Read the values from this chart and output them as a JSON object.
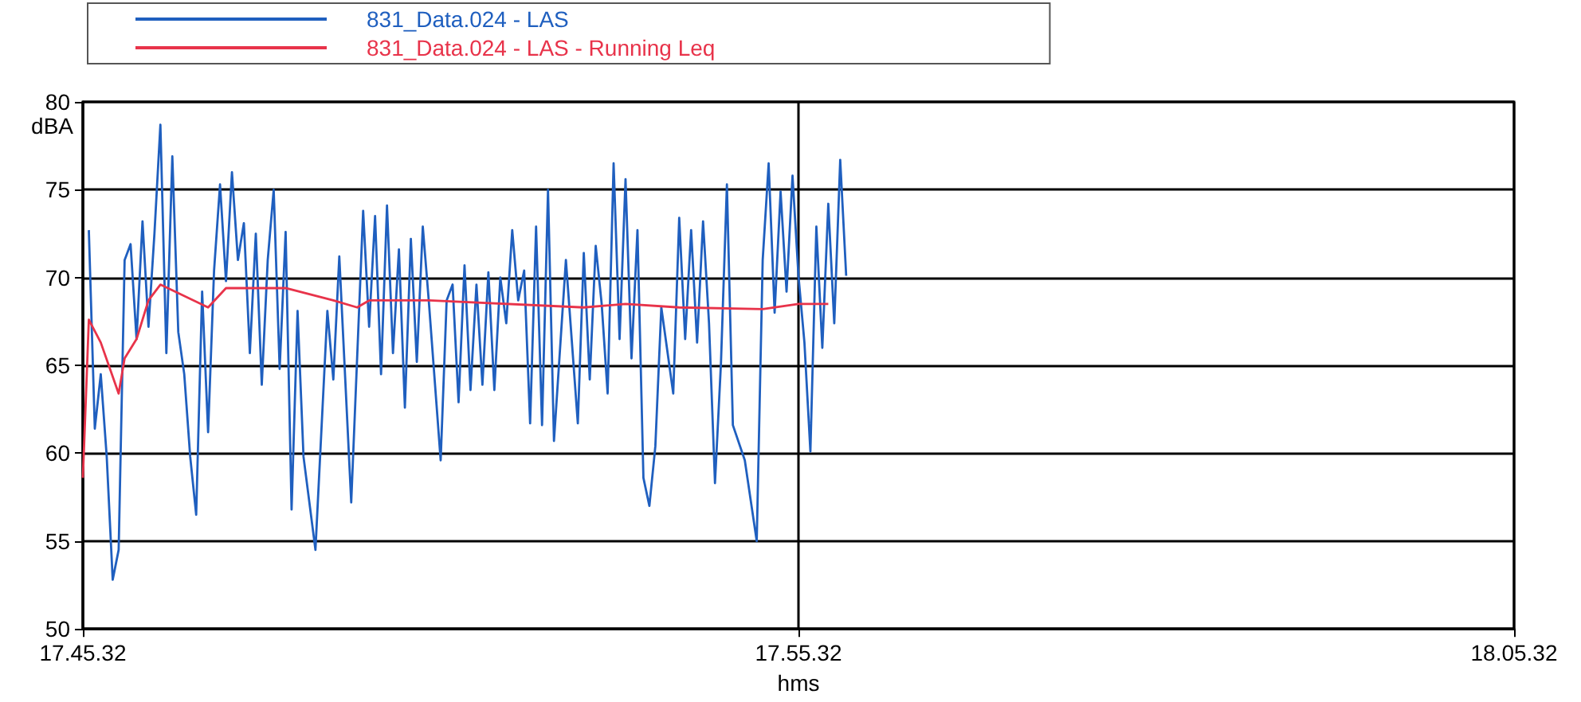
{
  "chart_data": {
    "type": "line",
    "xlabel": "hms",
    "ylabel": "dBA",
    "categories": [
      "17.45.32",
      null,
      null,
      null,
      null,
      null,
      null,
      null,
      null,
      null,
      null,
      null,
      null,
      null,
      null,
      null,
      null,
      null,
      null,
      null,
      null,
      null,
      null,
      null,
      null,
      null,
      null,
      null,
      null,
      null,
      null,
      null,
      null,
      null,
      null,
      null,
      null,
      null,
      null,
      null,
      null,
      null,
      null,
      null,
      null,
      null,
      null,
      null,
      null,
      null,
      null,
      null,
      null,
      null,
      null,
      null,
      null,
      null,
      null,
      null,
      null,
      null,
      null,
      null,
      null,
      null,
      null,
      null,
      null,
      null,
      null,
      null,
      null,
      null,
      null,
      null,
      null,
      null,
      null,
      null,
      null,
      null,
      null,
      null,
      null,
      null,
      null,
      null,
      null,
      null,
      null,
      null,
      null,
      null,
      null,
      null,
      null,
      null,
      null,
      null,
      null,
      null,
      null,
      null,
      null,
      null,
      null,
      null,
      null,
      null,
      null,
      null,
      null,
      null,
      null,
      null,
      null,
      null,
      null,
      null,
      "17.55.32",
      null,
      null,
      null,
      null,
      null,
      null,
      null,
      null,
      null,
      null,
      null,
      null,
      null,
      null,
      null,
      null,
      null,
      null,
      null,
      null,
      null,
      null,
      null,
      null,
      null,
      null,
      null,
      null,
      null,
      null,
      null,
      null,
      null,
      null,
      null,
      null,
      null,
      null,
      null,
      null,
      null,
      null,
      null,
      null,
      null,
      null,
      null,
      null,
      null,
      null,
      null,
      null,
      null,
      null,
      null,
      null,
      null,
      null,
      null,
      null,
      null,
      null,
      null,
      null,
      null,
      null,
      null,
      null,
      null,
      null,
      null,
      null,
      null,
      null,
      null,
      null,
      null,
      null,
      null,
      null,
      null,
      null,
      null,
      null,
      null,
      null,
      null,
      null,
      null,
      null,
      null,
      null,
      null,
      null,
      null,
      null,
      null,
      null,
      null,
      null,
      null,
      null,
      null,
      null,
      null,
      null,
      null,
      null,
      null,
      null,
      null,
      null,
      null,
      null,
      null,
      null,
      null,
      null,
      null,
      "18.05.32"
    ],
    "ylim": [
      50,
      80
    ],
    "yticks": [
      50,
      55,
      60,
      65,
      70,
      75,
      80
    ],
    "grid": true,
    "legend": "top left",
    "marker": "none",
    "line_style": "solid",
    "series": [
      {
        "name": "831_Data.024 - LAS",
        "color": "#1f5fbf",
        "values": [
          null,
          72.7,
          61.4,
          64.5,
          59.8,
          52.8,
          54.5,
          71,
          71.9,
          66.5,
          73.2,
          67.2,
          72.5,
          78.7,
          65.7,
          76.9,
          66.9,
          64.5,
          59.8,
          56.5,
          69.2,
          61.2,
          70.4,
          75.3,
          69.8,
          76,
          71,
          73.1,
          65.7,
          72.5,
          63.9,
          71,
          75,
          64.8,
          72.6,
          56.8,
          68.1,
          59.8,
          null,
          54.5,
          null,
          68.1,
          64.2,
          71.2,
          null,
          57.2,
          null,
          73.8,
          67.2,
          73.5,
          64.5,
          74.1,
          65.7,
          71.6,
          62.6,
          72.2,
          65.2,
          72.9,
          68.7,
          null,
          59.6,
          68.7,
          69.6,
          62.9,
          70.7,
          63.6,
          69.6,
          63.9,
          70.3,
          63.6,
          70,
          67.4,
          72.7,
          68.7,
          70.4,
          61.7,
          72.9,
          61.6,
          75,
          60.7,
          null,
          71,
          null,
          61.7,
          71.4,
          64.2,
          71.8,
          68.5,
          63.4,
          76.5,
          66.5,
          75.6,
          65.4,
          72.7,
          58.6,
          57,
          60.4,
          68.3,
          null,
          63.4,
          73.4,
          66.5,
          72.7,
          66.3,
          73.2,
          67.4,
          58.3,
          65.1,
          75.3,
          61.6,
          null,
          59.6,
          null,
          55,
          71,
          76.5,
          68,
          74.9,
          69.2,
          75.8,
          70.1,
          66.3,
          60.1,
          72.9,
          66,
          74.2,
          67.4,
          76.7,
          70.1,
          null,
          null,
          null,
          null,
          null,
          null,
          null,
          null,
          null,
          null,
          null,
          null,
          null,
          null,
          null,
          null,
          null,
          null,
          null,
          null,
          null,
          null,
          null,
          null,
          null,
          null,
          null,
          null,
          null,
          null,
          null,
          null,
          null,
          null,
          null,
          null,
          null,
          null,
          null,
          null,
          null,
          null,
          null,
          null,
          null,
          null,
          null,
          null,
          null,
          null,
          null,
          null,
          null,
          null,
          null,
          null,
          null,
          null,
          null,
          null,
          null,
          null,
          null,
          null,
          null,
          null,
          null,
          null,
          null,
          null,
          null,
          null,
          null,
          null,
          null,
          null,
          null,
          null,
          null,
          null,
          null,
          null,
          null,
          null,
          null,
          null,
          null,
          null,
          null,
          null,
          null,
          null,
          null,
          null,
          null,
          null,
          null,
          null,
          null,
          null,
          null,
          null,
          null,
          null,
          null,
          null,
          null,
          null,
          null,
          null,
          null,
          null
        ]
      },
      {
        "name": "831_Data.024 - LAS - Running Leq",
        "color": "#e8334a",
        "values": [
          58.6,
          67.6,
          null,
          66.3,
          null,
          null,
          63.4,
          65.4,
          null,
          66.5,
          null,
          68.7,
          null,
          69.6,
          null,
          null,
          null,
          null,
          null,
          null,
          null,
          68.3,
          null,
          null,
          69.4,
          null,
          null,
          null,
          null,
          null,
          null,
          null,
          null,
          null,
          69.4,
          null,
          null,
          null,
          null,
          null,
          null,
          null,
          68.7,
          null,
          null,
          null,
          68.3,
          null,
          68.7,
          null,
          null,
          null,
          null,
          null,
          null,
          null,
          null,
          null,
          68.7,
          null,
          null,
          null,
          null,
          null,
          null,
          null,
          null,
          null,
          null,
          null,
          null,
          null,
          null,
          null,
          null,
          null,
          null,
          null,
          null,
          null,
          null,
          null,
          null,
          null,
          68.3,
          null,
          null,
          null,
          null,
          null,
          null,
          68.5,
          null,
          null,
          null,
          null,
          null,
          null,
          null,
          null,
          68.3,
          null,
          null,
          null,
          null,
          null,
          null,
          null,
          null,
          null,
          null,
          null,
          null,
          null,
          68.2,
          null,
          null,
          null,
          null,
          null,
          68.5,
          null,
          null,
          null,
          null,
          68.5,
          null,
          null,
          null,
          null,
          null,
          null,
          null,
          null,
          null,
          null,
          null,
          null,
          null,
          null,
          null,
          null,
          null,
          null,
          null,
          null,
          null,
          null,
          null,
          null,
          null,
          null,
          null,
          null,
          null,
          null,
          null,
          null,
          null,
          null,
          null,
          null,
          null,
          null,
          null,
          null,
          null,
          null,
          null,
          null,
          null,
          null,
          null,
          null,
          null,
          null,
          null,
          null,
          null,
          null,
          null,
          null,
          null,
          null,
          null,
          null,
          null,
          null,
          null,
          null,
          null,
          null,
          null,
          null,
          null,
          null,
          null,
          null,
          null,
          null,
          null,
          null,
          null,
          null,
          null,
          null,
          null,
          null,
          null,
          null,
          null,
          null,
          null,
          null,
          null,
          null,
          null,
          null,
          null,
          null,
          null,
          null,
          null,
          null,
          null,
          null,
          null,
          null,
          null,
          null,
          null,
          null,
          null,
          null,
          null,
          null,
          null,
          null,
          null,
          null,
          null
        ]
      }
    ]
  }
}
